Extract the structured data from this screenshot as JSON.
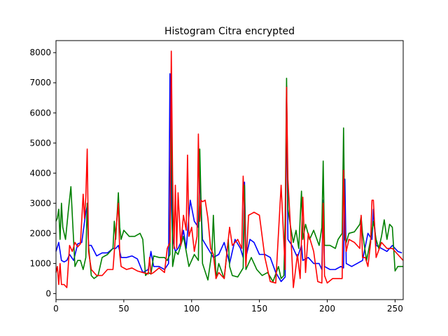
{
  "chart_data": {
    "type": "line",
    "title": "Histogram Citra encrypted",
    "xlabel": "",
    "ylabel": "",
    "xlim": [
      0,
      256
    ],
    "ylim": [
      -200,
      8400
    ],
    "xticks": [
      0,
      50,
      100,
      150,
      200,
      250
    ],
    "yticks": [
      0,
      1000,
      2000,
      3000,
      4000,
      5000,
      6000,
      7000,
      8000
    ],
    "grid": false,
    "legend": "none",
    "series": [
      {
        "color": "#0000ff",
        "x": [
          0,
          2,
          4,
          6,
          8,
          10,
          13,
          16,
          19,
          22,
          23,
          24,
          26,
          30,
          34,
          38,
          42,
          44,
          46,
          48,
          52,
          56,
          60,
          64,
          68,
          70,
          72,
          76,
          80,
          83,
          84,
          85,
          86,
          88,
          90,
          92,
          94,
          96,
          99,
          102,
          105,
          106,
          108,
          112,
          116,
          120,
          124,
          128,
          132,
          136,
          138,
          139,
          140,
          143,
          146,
          150,
          154,
          158,
          162,
          166,
          169,
          170,
          171,
          174,
          178,
          181,
          182,
          186,
          190,
          194,
          196,
          197,
          198,
          202,
          206,
          210,
          212,
          213,
          214,
          218,
          222,
          226,
          230,
          233,
          234,
          236,
          240,
          244,
          248,
          252,
          255
        ],
        "values": [
          1400,
          1700,
          1100,
          1050,
          1100,
          1300,
          1100,
          1650,
          1700,
          2700,
          2900,
          1600,
          1600,
          1250,
          1350,
          1350,
          1500,
          1500,
          1600,
          1200,
          1200,
          1250,
          1150,
          700,
          800,
          1400,
          900,
          900,
          800,
          1000,
          7300,
          3000,
          1800,
          1400,
          1500,
          1700,
          2100,
          1500,
          3100,
          2400,
          2200,
          3900,
          1800,
          1500,
          1200,
          1300,
          1700,
          1000,
          1800,
          1500,
          1200,
          3700,
          1200,
          1800,
          1700,
          1300,
          1300,
          1200,
          700,
          400,
          550,
          6900,
          1800,
          1600,
          1200,
          1600,
          1100,
          1200,
          1000,
          1000,
          800,
          3100,
          900,
          800,
          800,
          900,
          850,
          3800,
          1000,
          900,
          1000,
          1100,
          2000,
          1800,
          2800,
          1600,
          1500,
          1400,
          1600,
          1400,
          1350
        ]
      },
      {
        "color": "#008000",
        "x": [
          0,
          1,
          2,
          3,
          4,
          5,
          7,
          9,
          11,
          12,
          14,
          16,
          18,
          20,
          22,
          23,
          24,
          26,
          28,
          31,
          34,
          38,
          42,
          43,
          44,
          46,
          47,
          48,
          50,
          54,
          58,
          62,
          64,
          66,
          68,
          70,
          72,
          76,
          80,
          82,
          84,
          85,
          86,
          88,
          90,
          94,
          98,
          102,
          105,
          106,
          108,
          112,
          115,
          116,
          118,
          120,
          124,
          127,
          128,
          130,
          134,
          138,
          139,
          140,
          144,
          148,
          152,
          156,
          160,
          164,
          166,
          168,
          169,
          170,
          171,
          173,
          175,
          177,
          179,
          181,
          182,
          184,
          187,
          190,
          194,
          196,
          197,
          198,
          202,
          206,
          208,
          211,
          212,
          213,
          214,
          216,
          220,
          224,
          225,
          226,
          229,
          232,
          234,
          236,
          238,
          240,
          242,
          244,
          246,
          248,
          250,
          252,
          254,
          256
        ],
        "values": [
          2400,
          2500,
          2800,
          1800,
          3000,
          2200,
          1800,
          2700,
          3550,
          2600,
          900,
          1100,
          1100,
          800,
          1200,
          3000,
          1600,
          600,
          500,
          600,
          1200,
          1300,
          1500,
          2400,
          1800,
          3350,
          2200,
          1800,
          2100,
          1900,
          1900,
          2000,
          1800,
          600,
          700,
          650,
          1250,
          1200,
          1200,
          1100,
          1300,
          7300,
          900,
          1400,
          1300,
          1900,
          900,
          1300,
          1100,
          4800,
          1000,
          450,
          1400,
          2600,
          500,
          1000,
          500,
          1800,
          900,
          600,
          550,
          850,
          3600,
          800,
          1200,
          800,
          600,
          700,
          400,
          900,
          500,
          600,
          2500,
          7150,
          2800,
          2200,
          1700,
          2100,
          1500,
          3400,
          1800,
          2300,
          1800,
          2100,
          1600,
          2200,
          4400,
          1600,
          1600,
          1500,
          1800,
          2000,
          5500,
          1800,
          1700,
          2000,
          2050,
          2300,
          2550,
          2000,
          1100,
          1800,
          2400,
          1800,
          1500,
          1900,
          2450,
          1800,
          2300,
          2200,
          750,
          900,
          900,
          900
        ]
      },
      {
        "color": "#ff0000",
        "x": [
          0,
          1,
          2,
          3,
          4,
          5,
          6,
          8,
          10,
          12,
          14,
          16,
          18,
          20,
          21,
          22,
          23,
          24,
          26,
          30,
          34,
          38,
          42,
          44,
          46,
          47,
          48,
          52,
          56,
          60,
          64,
          68,
          69,
          70,
          72,
          76,
          80,
          82,
          84,
          85,
          86,
          87,
          88,
          89,
          90,
          92,
          94,
          96,
          97,
          98,
          100,
          102,
          104,
          105,
          106,
          107,
          108,
          110,
          112,
          114,
          116,
          118,
          120,
          124,
          128,
          130,
          134,
          137,
          138,
          139,
          140,
          142,
          144,
          146,
          150,
          154,
          158,
          162,
          166,
          169,
          170,
          171,
          173,
          175,
          178,
          180,
          181,
          182,
          184,
          186,
          188,
          190,
          193,
          196,
          197,
          198,
          200,
          204,
          208,
          211,
          212,
          213,
          214,
          216,
          220,
          224,
          225,
          226,
          228,
          230,
          232,
          233,
          234,
          236,
          240,
          244,
          248,
          252,
          256
        ],
        "values": [
          700,
          900,
          300,
          1000,
          300,
          300,
          300,
          200,
          1600,
          1400,
          1700,
          1550,
          1650,
          3300,
          2500,
          3200,
          4800,
          1400,
          800,
          600,
          600,
          800,
          800,
          2000,
          3000,
          1300,
          900,
          800,
          850,
          750,
          700,
          650,
          1200,
          650,
          700,
          850,
          700,
          1500,
          1700,
          8050,
          3800,
          1500,
          3600,
          1500,
          3350,
          1600,
          2600,
          2100,
          4600,
          1900,
          2200,
          1400,
          1900,
          5300,
          2400,
          3100,
          3050,
          3100,
          2500,
          1500,
          1300,
          500,
          700,
          500,
          2200,
          1600,
          1800,
          1500,
          3900,
          2500,
          900,
          2600,
          2650,
          2700,
          2600,
          1200,
          400,
          350,
          3600,
          800,
          6850,
          3800,
          2100,
          200,
          1300,
          500,
          1800,
          3200,
          700,
          2000,
          1700,
          1400,
          400,
          350,
          3000,
          600,
          350,
          500,
          500,
          500,
          4100,
          2100,
          1400,
          1800,
          1700,
          1500,
          2600,
          1200,
          1200,
          900,
          1700,
          3100,
          3100,
          1200,
          1700,
          1500,
          1500,
          1300,
          1100
        ]
      }
    ]
  }
}
